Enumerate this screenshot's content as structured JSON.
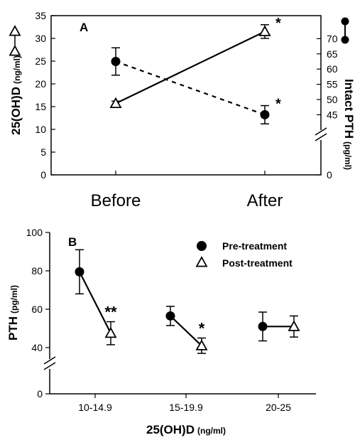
{
  "chart_data": [
    {
      "type": "line",
      "panel_label": "A",
      "categories": [
        "Before",
        "After"
      ],
      "y_left": {
        "label": "25(OH)D",
        "unit": "(ng/ml)",
        "ylim": [
          0,
          35
        ],
        "ticks": [
          "0",
          "5",
          "10",
          "15",
          "20",
          "25",
          "30",
          "35"
        ]
      },
      "y_right": {
        "label": "Intact PTH",
        "unit": "(pg/ml)",
        "ylim_visible": [
          40,
          70
        ],
        "ticks": [
          "0",
          "45",
          "50",
          "55",
          "60",
          "65",
          "70"
        ],
        "axis_break": true
      },
      "series": [
        {
          "axis": "left",
          "marker": "open-triangle",
          "line": "solid",
          "values": [
            15.7,
            31.5
          ],
          "errors": [
            0.5,
            1.5
          ],
          "significance": [
            "",
            "*"
          ]
        },
        {
          "axis": "right",
          "marker": "filled-circle",
          "line": "dashed",
          "values": [
            62.5,
            45.0
          ],
          "errors": [
            4.5,
            3.0
          ],
          "significance": [
            "",
            "*"
          ]
        }
      ]
    },
    {
      "type": "line",
      "panel_label": "B",
      "categories": [
        "10-14.9",
        "15-19.9",
        "20-25"
      ],
      "xlabel": "25(OH)D",
      "xlabel_unit": "(ng/ml)",
      "ylabel": "PTH",
      "ylabel_unit": "(pg/ml)",
      "ylim_visible": [
        35,
        100
      ],
      "yticks": [
        "0",
        "40",
        "60",
        "80",
        "100"
      ],
      "axis_break": true,
      "legend": {
        "placement": "top-right"
      },
      "series": [
        {
          "name": "Pre-treatment",
          "marker": "filled-circle",
          "values": [
            79.5,
            56.5,
            51.0
          ],
          "errors": [
            11.5,
            5.0,
            7.5
          ]
        },
        {
          "name": "Post-treatment",
          "marker": "open-triangle",
          "values": [
            47.5,
            41.0,
            51.0
          ],
          "errors": [
            6.0,
            4.0,
            5.5
          ],
          "significance": [
            "**",
            "*",
            ""
          ]
        }
      ]
    }
  ]
}
